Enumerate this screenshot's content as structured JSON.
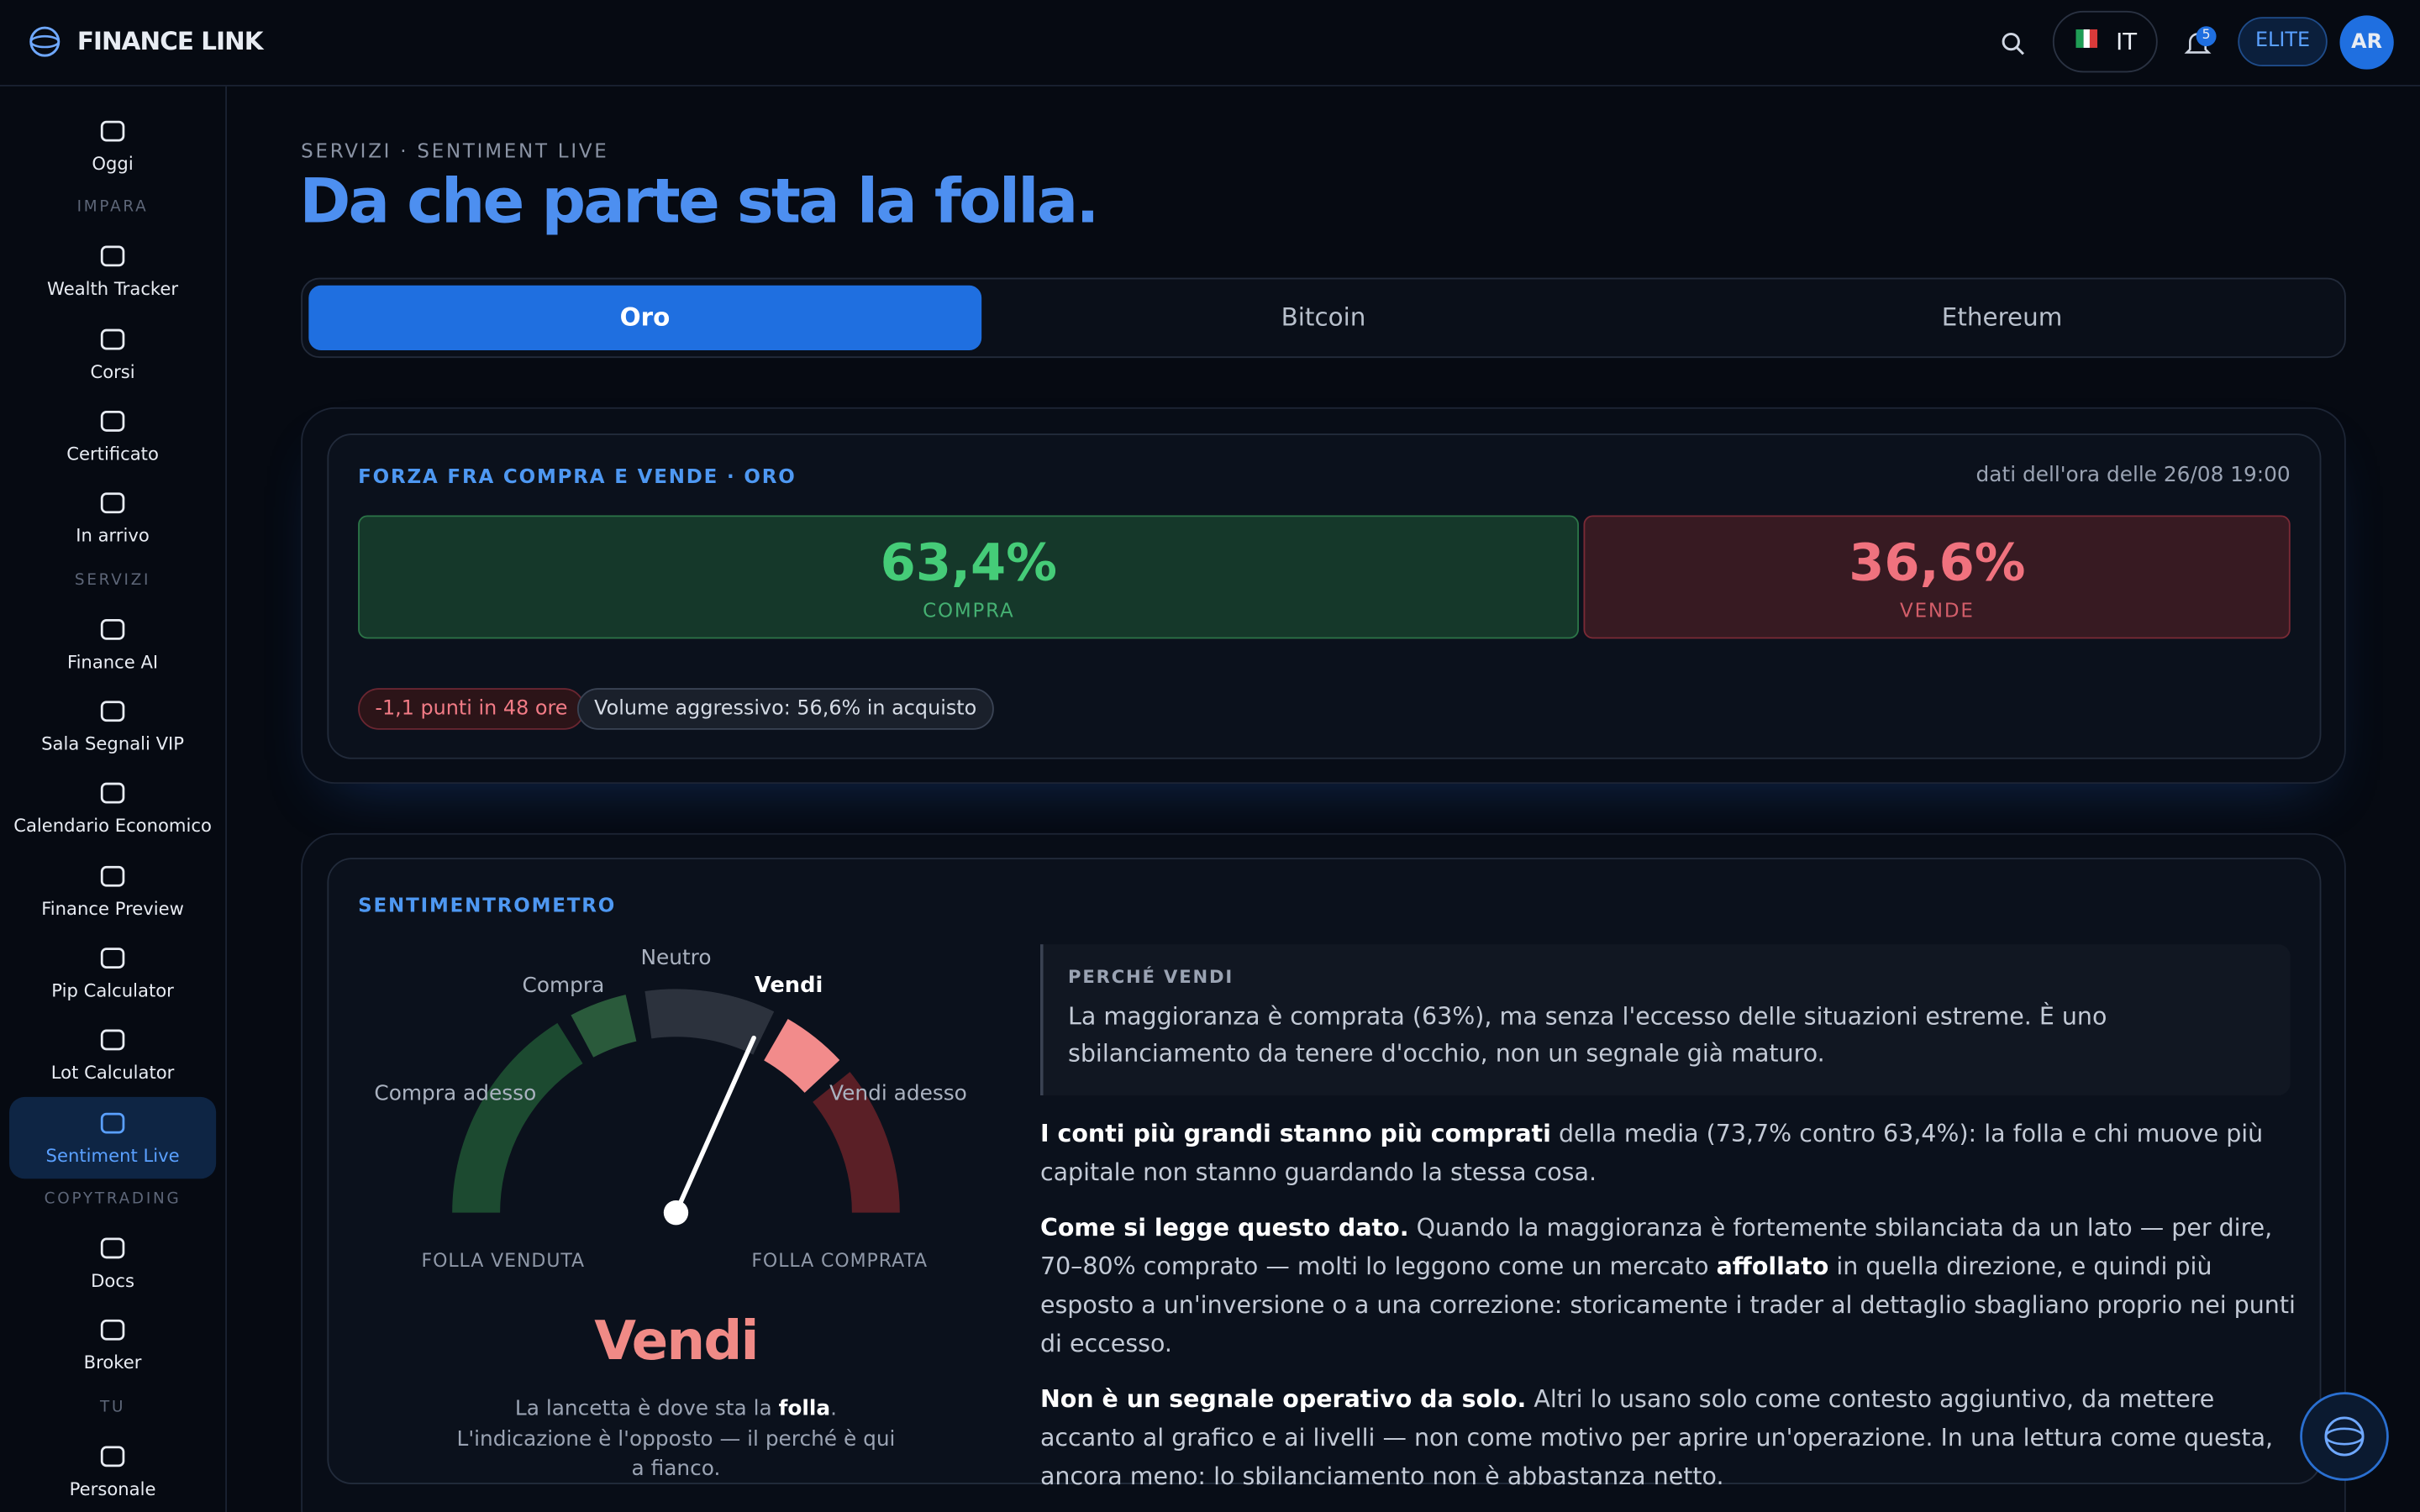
{
  "brand": "FINANCE LINK",
  "topbar": {
    "language": "IT",
    "notifications": "5",
    "plan": "ELITE",
    "avatar": "AR"
  },
  "sidebar": {
    "top": "Oggi",
    "sections": [
      {
        "title": "IMPARA",
        "items": [
          "Wealth Tracker",
          "Corsi",
          "Certificato",
          "In arrivo"
        ]
      },
      {
        "title": "SERVIZI",
        "items": [
          "Finance AI",
          "Sala Segnali VIP",
          "Calendario Economico",
          "Finance Preview",
          "Pip Calculator",
          "Lot Calculator",
          "Sentiment Live"
        ]
      },
      {
        "title": "COPYTRADING",
        "items": [
          "Docs",
          "Broker"
        ]
      },
      {
        "title": "TU",
        "items": [
          "Personale"
        ]
      }
    ]
  },
  "header": {
    "breadcrumb": "SERVIZI · SENTIMENT LIVE",
    "title": "Da che parte sta la folla."
  },
  "tabs": [
    "Oro",
    "Bitcoin",
    "Ethereum"
  ],
  "strength": {
    "title": "FORZA FRA COMPRA E VENDE · ORO",
    "timestamp": "dati dell'ora delle 26/08 19:00",
    "buy": {
      "value": 63.4,
      "label": "63,4%",
      "caption": "COMPRA"
    },
    "sell": {
      "value": 36.6,
      "label": "36,6%",
      "caption": "VENDE"
    },
    "chips": [
      "-1,1 punti in 48 ore",
      "Volume aggressivo: 56,6% in acquisto"
    ]
  },
  "gauge": {
    "title": "SENTIMENTROMETRO",
    "labels": {
      "strong_buy": "Compra adesso",
      "buy": "Compra",
      "neutral": "Neutro",
      "sell": "Vendi",
      "strong_sell": "Vendi adesso"
    },
    "left_end": "FOLLA VENDUTA",
    "right_end": "FOLLA COMPRATA",
    "result": "Vendi",
    "caption": [
      "La lancetta è dove sta la ",
      "folla",
      ". L'indicazione è l'opposto — il perché è qui a fianco."
    ]
  },
  "explanation": {
    "box_title": "PERCHÉ VENDI",
    "box_text": "La maggioranza è comprata (63%), ma senza l'eccesso delle situazioni estreme. È uno sbilanciamento da tenere d'occhio, non un segnale già maturo.",
    "paragraphs": [
      [
        "I conti più grandi stanno più comprati",
        " della media (73,7% contro 63,4%): la folla e chi muove più capitale non stanno guardando la stessa cosa."
      ],
      [
        "Come si legge questo dato.",
        " Quando la maggioranza è fortemente sbilanciata da un lato — per dire, 70–80% comprato — molti lo leggono come un mercato ",
        "affollato",
        " in quella direzione, e quindi più esposto a un'inversione o a una correzione: storicamente i trader al dettaglio sbagliano proprio nei punti di eccesso."
      ],
      [
        "Non è un segnale operativo da solo.",
        " Altri lo usano solo come contesto aggiuntivo, da mettere accanto al grafico e ai livelli — non come motivo per aprire un'operazione. In una lettura come questa, ancora meno: lo sbilanciamento non è abbastanza netto."
      ]
    ]
  }
}
